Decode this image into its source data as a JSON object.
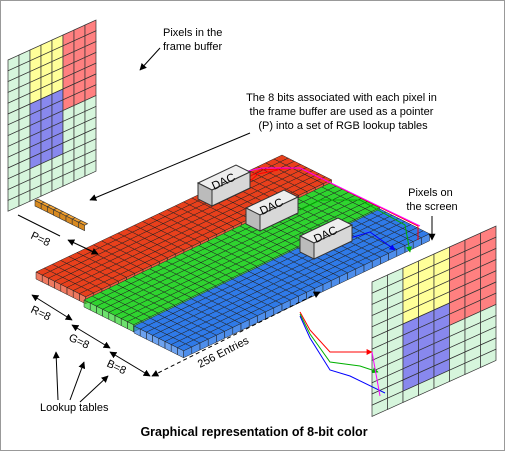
{
  "caption": "Graphical representation of 8-bit color",
  "annotations": {
    "frame_buffer": [
      "Pixels in the",
      "frame buffer"
    ],
    "pointer": [
      "The 8 bits associated with each pixel in",
      "the frame buffer are used as a pointer",
      "(P) into a set of RGB lookup tables"
    ],
    "screen": [
      "Pixels on",
      "the screen"
    ],
    "lookup_tables": "Lookup tables"
  },
  "labels": {
    "p": "P=8",
    "r": "R=8",
    "g": "G=8",
    "b": "B=8",
    "entries": "256 Entries"
  },
  "dac_label": "DAC",
  "colors": {
    "red_table": "#e8401c",
    "green_table": "#2fd42f",
    "blue_table": "#2f7ae8",
    "pointer_bits": "#f0a030",
    "fb_yellow": "#ffff99",
    "fb_red": "#ff8080",
    "fb_blue": "#8888ee",
    "fb_green": "#d6f5dc",
    "dac_fill": "#d8d8d8",
    "wire_red": "#ff0000",
    "wire_green": "#00b000",
    "wire_blue": "#0000ff",
    "wire_magenta": "#ff00ff"
  }
}
